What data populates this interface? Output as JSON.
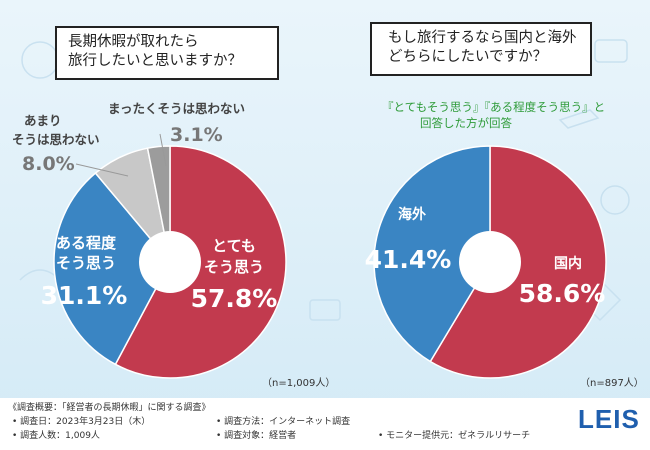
{
  "questions": {
    "left": {
      "line1": "長期休暇が取れたら",
      "line2": "旅行したいと思いますか？"
    },
    "right": {
      "line1": "もし旅行するなら国内と海外",
      "line2": "どちらにしたいですか？"
    }
  },
  "right_subtitle": {
    "line1": "『とてもそう思う』『ある程度そう思う』と",
    "line2": "回答した方が回答"
  },
  "footer": {
    "title": "《調査概要：「経営者の長期休暇」に関する調査》",
    "date": "調査日：2023年3月23日（木）",
    "count": "調査人数：1,009人",
    "method": "調査方法：インターネット調査",
    "target": "調査対象：経営者",
    "provider": "モニター提供元：ゼネラルリサーチ",
    "logo": "LEIS"
  },
  "chart_data": [
    {
      "type": "pie",
      "title": "長期休暇が取れたら旅行したいと思いますか？",
      "n_label": "（n=1,009人）",
      "categories": [
        "とてもそう思う",
        "ある程度そう思う",
        "あまりそうは思わない",
        "まったくそうは思わない"
      ],
      "values": [
        57.8,
        31.1,
        8.0,
        3.1
      ],
      "colors": [
        "#c23a4e",
        "#3a85c3",
        "#c8c8c8",
        "#9c9c9c"
      ],
      "labels": [
        {
          "line1": "とても",
          "line2": "そう思う",
          "pct": "57.8%"
        },
        {
          "line1": "ある程度",
          "line2": "そう思う",
          "pct": "31.1%"
        },
        {
          "line1": "あまり",
          "line2": "そうは思わない",
          "pct": "8.0%"
        },
        {
          "line1": "まったくそうは思わない",
          "line2": "",
          "pct": "3.1%"
        }
      ]
    },
    {
      "type": "pie",
      "title": "もし旅行するなら国内と海外どちらにしたいですか？",
      "n_label": "（n=897人）",
      "categories": [
        "国内",
        "海外"
      ],
      "values": [
        58.6,
        41.4
      ],
      "colors": [
        "#c23a4e",
        "#3a85c3"
      ],
      "labels": [
        {
          "line1": "国内",
          "pct": "58.6%"
        },
        {
          "line1": "海外",
          "pct": "41.4%"
        }
      ]
    }
  ]
}
